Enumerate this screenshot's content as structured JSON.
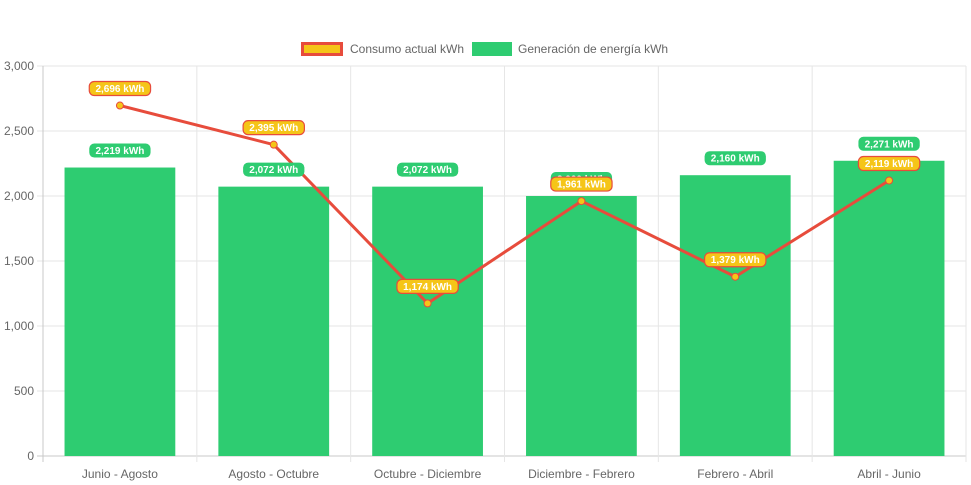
{
  "chart_data": {
    "type": "bar",
    "categories": [
      "Junio - Agosto",
      "Agosto - Octubre",
      "Octubre - Diciembre",
      "Diciembre - Febrero",
      "Febrero - Abril",
      "Abril - Junio"
    ],
    "series": [
      {
        "name": "Consumo actual kWh",
        "type": "line",
        "values": [
          2696,
          2395,
          1174,
          1961,
          1379,
          2119
        ],
        "labels": [
          "2,696 kWh",
          "2,395 kWh",
          "1,174 kWh",
          "1,961 kWh",
          "1,379 kWh",
          "2,119 kWh"
        ],
        "line_color": "#e74c3c",
        "fill_color": "#f5c518"
      },
      {
        "name": "Generación de energía kWh",
        "type": "bar",
        "values": [
          2219,
          2072,
          2072,
          2000,
          2160,
          2271
        ],
        "labels": [
          "2,219 kWh",
          "2,072 kWh",
          "2,072 kWh",
          "2,000 kWh",
          "2,160 kWh",
          "2,271 kWh"
        ],
        "color": "#2ecc71"
      }
    ],
    "y_ticks": [
      "0",
      "500",
      "1,000",
      "1,500",
      "2,000",
      "2,500",
      "3,000"
    ],
    "ylim": [
      0,
      3000
    ],
    "grid": true,
    "legend": "top-center"
  }
}
